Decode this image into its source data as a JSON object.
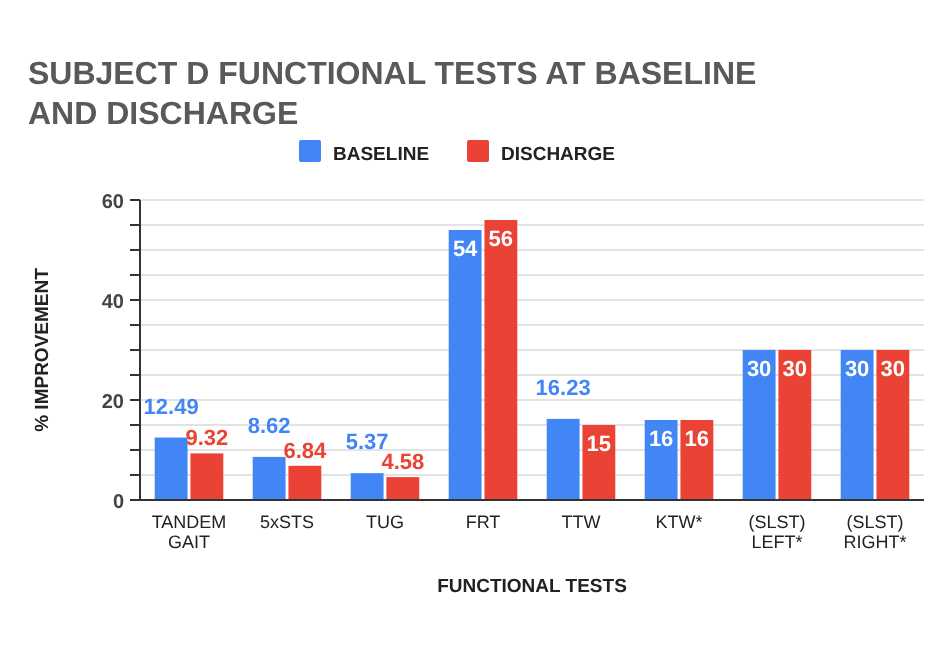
{
  "chart_data": {
    "type": "bar",
    "title": "SUBJECT D FUNCTIONAL TESTS AT BASELINE AND DISCHARGE",
    "xlabel": "FUNCTIONAL TESTS",
    "ylabel": "% IMPROVEMENT",
    "categories": [
      "TANDEM GAIT",
      "5xSTS",
      "TUG",
      "FRT",
      "TTW",
      "KTW*",
      "(SLST) LEFT*",
      "(SLST) RIGHT*"
    ],
    "series": [
      {
        "name": "BASELINE",
        "color": "#4285f4",
        "values": [
          12.49,
          8.62,
          5.37,
          54,
          16.23,
          16,
          30,
          30
        ]
      },
      {
        "name": "DISCHARGE",
        "color": "#ea4335",
        "values": [
          9.32,
          6.84,
          4.58,
          56,
          15,
          16,
          30,
          30
        ]
      }
    ],
    "ylim": [
      0,
      60
    ],
    "yticks": [
      0,
      {
        "value": 5,
        "label": null
      },
      {
        "value": 10,
        "label": null
      },
      {
        "value": 15,
        "label": null
      },
      20,
      {
        "value": 25,
        "label": null
      },
      {
        "value": 30,
        "label": null
      },
      {
        "value": 35,
        "label": null
      },
      40,
      {
        "value": 45,
        "label": null
      },
      {
        "value": 50,
        "label": null
      },
      {
        "value": 55,
        "label": null
      },
      60
    ],
    "grid": "y",
    "legend": "top",
    "data_labels": true
  }
}
